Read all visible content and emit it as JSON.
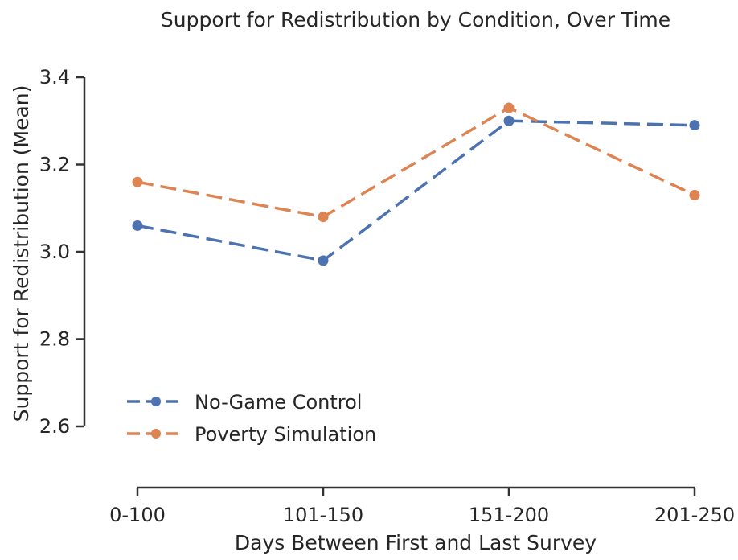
{
  "chart_data": {
    "type": "line",
    "title": "Support for Redistribution by Condition, Over Time",
    "xlabel": "Days Between First and Last Survey",
    "ylabel": "Support for Redistribution (Mean)",
    "categories": [
      "0-100",
      "101-150",
      "151-200",
      "201-250"
    ],
    "ylim": [
      2.6,
      3.4
    ],
    "yticks": [
      2.6,
      2.8,
      3.0,
      3.2,
      3.4
    ],
    "ytick_labels": [
      "2.6",
      "2.8",
      "3.0",
      "3.2",
      "3.4"
    ],
    "grid": false,
    "legend_position": "lower-left",
    "series": [
      {
        "name": "No-Game Control",
        "color": "#4c72b0",
        "values": [
          3.06,
          2.98,
          3.3,
          3.29
        ],
        "line_style": "dashed",
        "marker": "circle"
      },
      {
        "name": "Poverty Simulation",
        "color": "#dd8452",
        "values": [
          3.16,
          3.08,
          3.33,
          3.13
        ],
        "line_style": "dashed",
        "marker": "circle"
      }
    ]
  }
}
